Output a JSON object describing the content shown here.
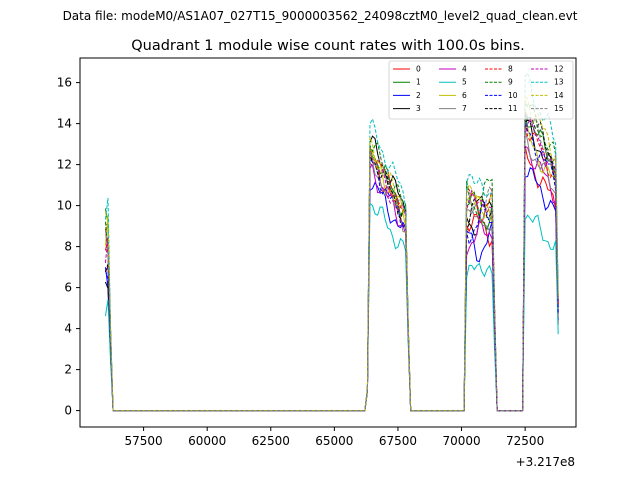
{
  "figure": {
    "suptitle": "Data file: modeM0/AS1A07_027T15_9000003562_24098cztM0_level2_quad_clean.evt"
  },
  "chart_data": {
    "type": "line",
    "title": "Quadrant 1 module wise count rates with 100.0s bins.",
    "xlabel": "",
    "ylabel": "",
    "x_offset_label": "+3.217e8",
    "xlim": [
      55000,
      74500
    ],
    "ylim": [
      -0.8,
      17.2
    ],
    "grid": false,
    "legend_position": "top-right",
    "x_ticks": [
      57500,
      60000,
      62500,
      65000,
      67500,
      70000,
      72500
    ],
    "x_tick_labels": [
      "57500",
      "60000",
      "62500",
      "65000",
      "67500",
      "70000",
      "72500"
    ],
    "y_ticks": [
      0,
      2,
      4,
      6,
      8,
      10,
      12,
      14,
      16
    ],
    "y_tick_labels": [
      "0",
      "2",
      "4",
      "6",
      "8",
      "10",
      "12",
      "14",
      "16"
    ],
    "segments": [
      {
        "start": 56000,
        "end": 56200,
        "seg_len": 3
      },
      {
        "start": 66300,
        "end": 67900,
        "seg_len": 17
      },
      {
        "start": 70200,
        "end": 71300,
        "seg_len": 12
      },
      {
        "start": 72500,
        "end": 73800,
        "seg_len": 14
      }
    ],
    "series": [
      {
        "name": "0",
        "color": "#ff0000",
        "dashed": false,
        "levels": [
          7.5,
          12.0,
          9.0,
          11.5
        ]
      },
      {
        "name": "1",
        "color": "#008000",
        "dashed": false,
        "levels": [
          8.8,
          12.5,
          9.8,
          13.5
        ]
      },
      {
        "name": "2",
        "color": "#0000ff",
        "dashed": false,
        "levels": [
          6.8,
          11.0,
          8.2,
          11.0
        ]
      },
      {
        "name": "3",
        "color": "#000000",
        "dashed": false,
        "levels": [
          6.5,
          12.8,
          9.5,
          13.0
        ]
      },
      {
        "name": "4",
        "color": "#bf00bf",
        "dashed": false,
        "levels": [
          7.2,
          11.5,
          8.5,
          12.0
        ]
      },
      {
        "name": "5",
        "color": "#00bfbf",
        "dashed": false,
        "levels": [
          5.4,
          10.0,
          6.8,
          9.0
        ]
      },
      {
        "name": "6",
        "color": "#bfbf00",
        "dashed": false,
        "levels": [
          8.5,
          12.2,
          10.0,
          12.5
        ]
      },
      {
        "name": "7",
        "color": "#808080",
        "dashed": false,
        "levels": [
          8.0,
          11.8,
          9.5,
          12.2
        ]
      },
      {
        "name": "8",
        "color": "#ff0000",
        "dashed": true,
        "levels": [
          7.8,
          12.5,
          10.2,
          13.0
        ]
      },
      {
        "name": "9",
        "color": "#008000",
        "dashed": true,
        "levels": [
          9.0,
          12.8,
          10.5,
          14.0
        ]
      },
      {
        "name": "10",
        "color": "#0000ff",
        "dashed": true,
        "levels": [
          7.0,
          11.8,
          9.2,
          12.8
        ]
      },
      {
        "name": "11",
        "color": "#000000",
        "dashed": true,
        "levels": [
          7.4,
          12.2,
          9.8,
          13.8
        ]
      },
      {
        "name": "12",
        "color": "#bf00bf",
        "dashed": true,
        "levels": [
          8.2,
          12.0,
          10.0,
          13.2
        ]
      },
      {
        "name": "13",
        "color": "#00bfbf",
        "dashed": true,
        "levels": [
          9.2,
          13.5,
          11.0,
          15.0
        ]
      },
      {
        "name": "14",
        "color": "#bfbf00",
        "dashed": true,
        "levels": [
          8.6,
          12.6,
          10.4,
          14.2
        ]
      },
      {
        "name": "15",
        "color": "#808080",
        "dashed": true,
        "levels": [
          8.4,
          12.4,
          10.0,
          13.6
        ]
      }
    ]
  }
}
